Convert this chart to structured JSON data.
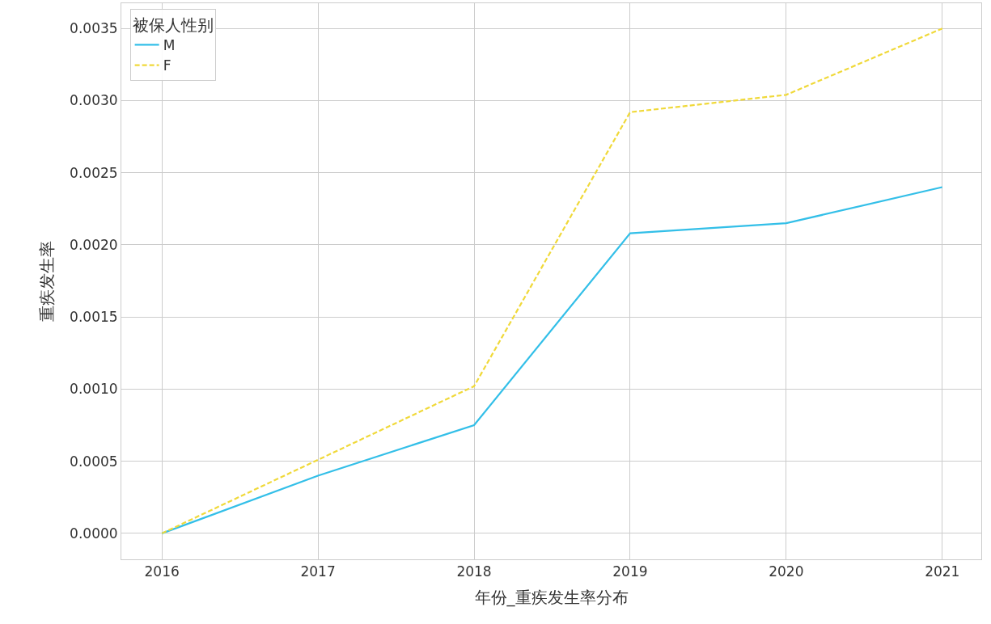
{
  "chart_data": {
    "type": "line",
    "xlabel": "年份_重疾发生率分布",
    "ylabel": "重疾发生率",
    "legend_title": "被保人性别",
    "x": [
      2016,
      2017,
      2018,
      2019,
      2020,
      2021
    ],
    "series": [
      {
        "name": "M",
        "color": "#33bfe8",
        "line_style": "solid",
        "values": [
          0.0,
          0.0004,
          0.00075,
          0.00208,
          0.00215,
          0.0024
        ]
      },
      {
        "name": "F",
        "color": "#f0d93a",
        "line_style": "dashed",
        "values": [
          0.0,
          0.00051,
          0.00102,
          0.00292,
          0.00304,
          0.0035
        ]
      }
    ],
    "xlim": [
      2015.74,
      2021.25
    ],
    "xticks": [
      2016,
      2017,
      2018,
      2019,
      2020,
      2021
    ],
    "ylim": [
      -0.00018,
      0.003675
    ],
    "yticks": [
      {
        "value": 0,
        "label": "0.0000"
      },
      {
        "value": 0.0005,
        "label": "0.0005"
      },
      {
        "value": 0.001,
        "label": "0.0010"
      },
      {
        "value": 0.0015,
        "label": "0.0015"
      },
      {
        "value": 0.002,
        "label": "0.0020"
      },
      {
        "value": 0.0025,
        "label": "0.0025"
      },
      {
        "value": 0.003,
        "label": "0.0030"
      },
      {
        "value": 0.0035,
        "label": "0.0035"
      }
    ],
    "grid": true,
    "legend": "top left",
    "marker": "none"
  }
}
